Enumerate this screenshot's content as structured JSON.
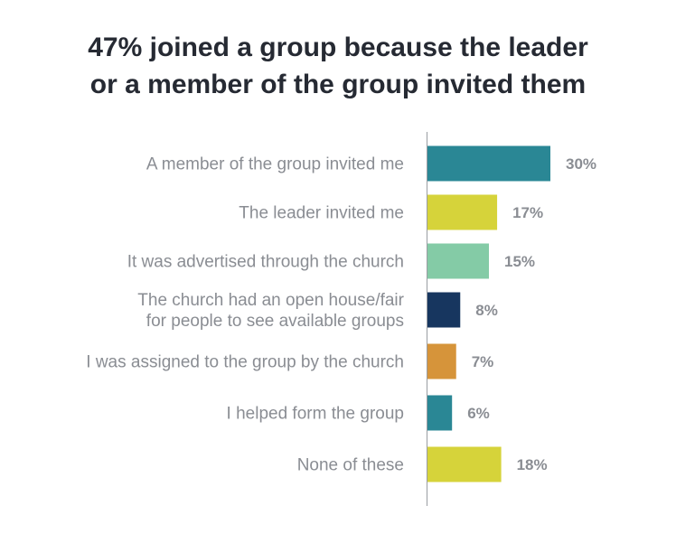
{
  "title_lines": [
    "47% joined a group because the leader",
    "or a member of the group invited them"
  ],
  "chart_data": {
    "type": "bar",
    "orientation": "horizontal",
    "title": "47% joined a group because the leader or a member of the group invited them",
    "categories": [
      [
        "A member of the group invited me"
      ],
      [
        "The leader invited me"
      ],
      [
        "It was advertised through the church"
      ],
      [
        "The church had an open house/fair",
        "for people to see available groups"
      ],
      [
        "I was assigned to the group by the church"
      ],
      [
        "I helped form the group"
      ],
      [
        "None of these"
      ]
    ],
    "values": [
      30,
      17,
      15,
      8,
      7,
      6,
      18
    ],
    "value_labels": [
      "30%",
      "17%",
      "15%",
      "8%",
      "7%",
      "6%",
      "18%"
    ],
    "colors": [
      "#2a8795",
      "#d6d33a",
      "#84cba6",
      "#17365f",
      "#d6943a",
      "#2a8795",
      "#d6d33a"
    ],
    "unit": "%",
    "grid": false,
    "legend": "none"
  }
}
